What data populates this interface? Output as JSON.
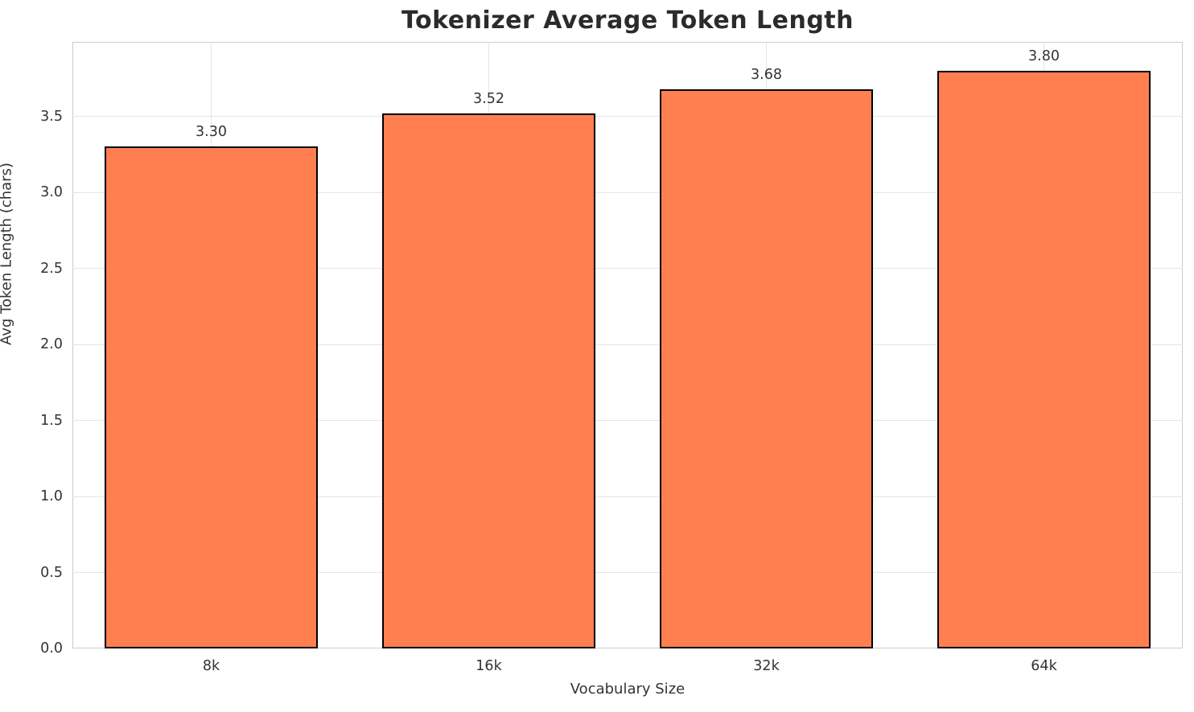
{
  "chart_data": {
    "type": "bar",
    "title": "Tokenizer Average Token Length",
    "xlabel": "Vocabulary Size",
    "ylabel": "Avg Token Length (chars)",
    "categories": [
      "8k",
      "16k",
      "32k",
      "64k"
    ],
    "values": [
      3.3,
      3.52,
      3.68,
      3.8
    ],
    "bar_labels": [
      "3.30",
      "3.52",
      "3.68",
      "3.80"
    ],
    "yticks": [
      "0.0",
      "0.5",
      "1.0",
      "1.5",
      "2.0",
      "2.5",
      "3.0",
      "3.5"
    ],
    "ylim": [
      0,
      3.99
    ],
    "grid": true,
    "legend_position": "none",
    "colors": {
      "bar_fill": "#FF7F50",
      "bar_edge": "#000000",
      "grid_line": "#e4e4e4",
      "spine": "#cccccc",
      "tick_text": "#333333",
      "title_text": "#2b2b2b"
    }
  }
}
